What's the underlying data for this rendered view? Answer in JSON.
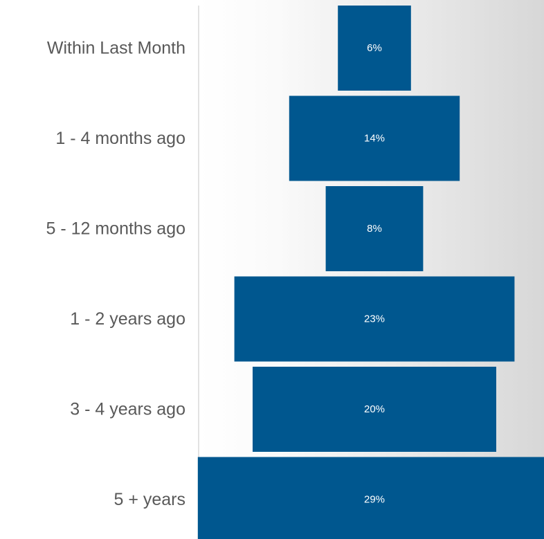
{
  "chart_data": {
    "type": "bar",
    "orientation": "horizontal-centered",
    "categories": [
      "Within Last Month",
      "1 - 4 months ago",
      "5 - 12 months ago",
      "1 - 2 years ago",
      "3 - 4 years ago",
      "5 + years"
    ],
    "values": [
      6,
      14,
      8,
      23,
      20,
      29
    ],
    "value_labels": [
      "6%",
      "14%",
      "8%",
      "23%",
      "20%",
      "29%"
    ],
    "bar_color": "#00578f",
    "axis_color": "#d9d9d9",
    "grid": false,
    "legend": "none"
  }
}
